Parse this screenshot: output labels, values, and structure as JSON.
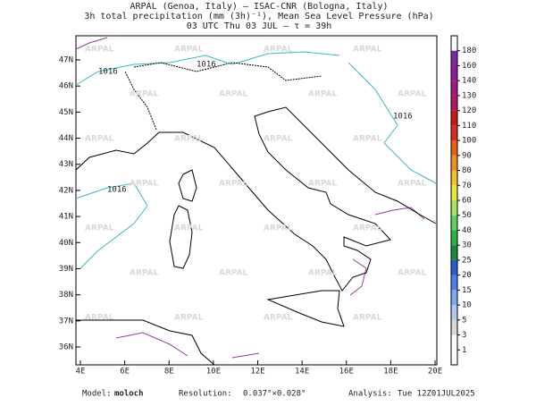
{
  "header": {
    "line1": "ARPAL (Genoa, Italy)  —  ISAC-CNR (Bologna, Italy)",
    "line2": "3h total precipitation (mm (3h)⁻¹), Mean Sea Level Pressure (hPa)",
    "line3": "03 UTC Thu 03 JUL  —  τ = 39h"
  },
  "map": {
    "lon_labels": [
      "4E",
      "6E",
      "8E",
      "10E",
      "12E",
      "14E",
      "16E",
      "18E",
      "20E"
    ],
    "lat_labels": [
      "47N",
      "46N",
      "45N",
      "44N",
      "43N",
      "42N",
      "41N",
      "40N",
      "39N",
      "38N",
      "37N",
      "36N"
    ],
    "watermark": "ARPAL",
    "isobar_label": "1016"
  },
  "colorbar": {
    "labels": [
      1,
      3,
      5,
      10,
      15,
      20,
      25,
      30,
      40,
      50,
      60,
      70,
      80,
      90,
      100,
      110,
      120,
      130,
      140,
      160,
      180
    ],
    "colors": [
      "#ffffff",
      "#d8d8d8",
      "#b0c8f0",
      "#7fa8f0",
      "#4e7ee8",
      "#2a5bd0",
      "#1a8a3a",
      "#2eb04a",
      "#60d060",
      "#a8e060",
      "#e8e840",
      "#f0c030",
      "#f09020",
      "#e86018",
      "#d83020",
      "#c81818",
      "#b01860",
      "#a01880",
      "#8c1c98",
      "#7a2aa8"
    ]
  },
  "footer": {
    "model_label": "Model:",
    "model": "moloch",
    "resolution_label": "Resolution:",
    "resolution": "0.037°×0.028°",
    "analysis_label": "Analysis:",
    "analysis": "Tue 12Z01JUL2025"
  }
}
